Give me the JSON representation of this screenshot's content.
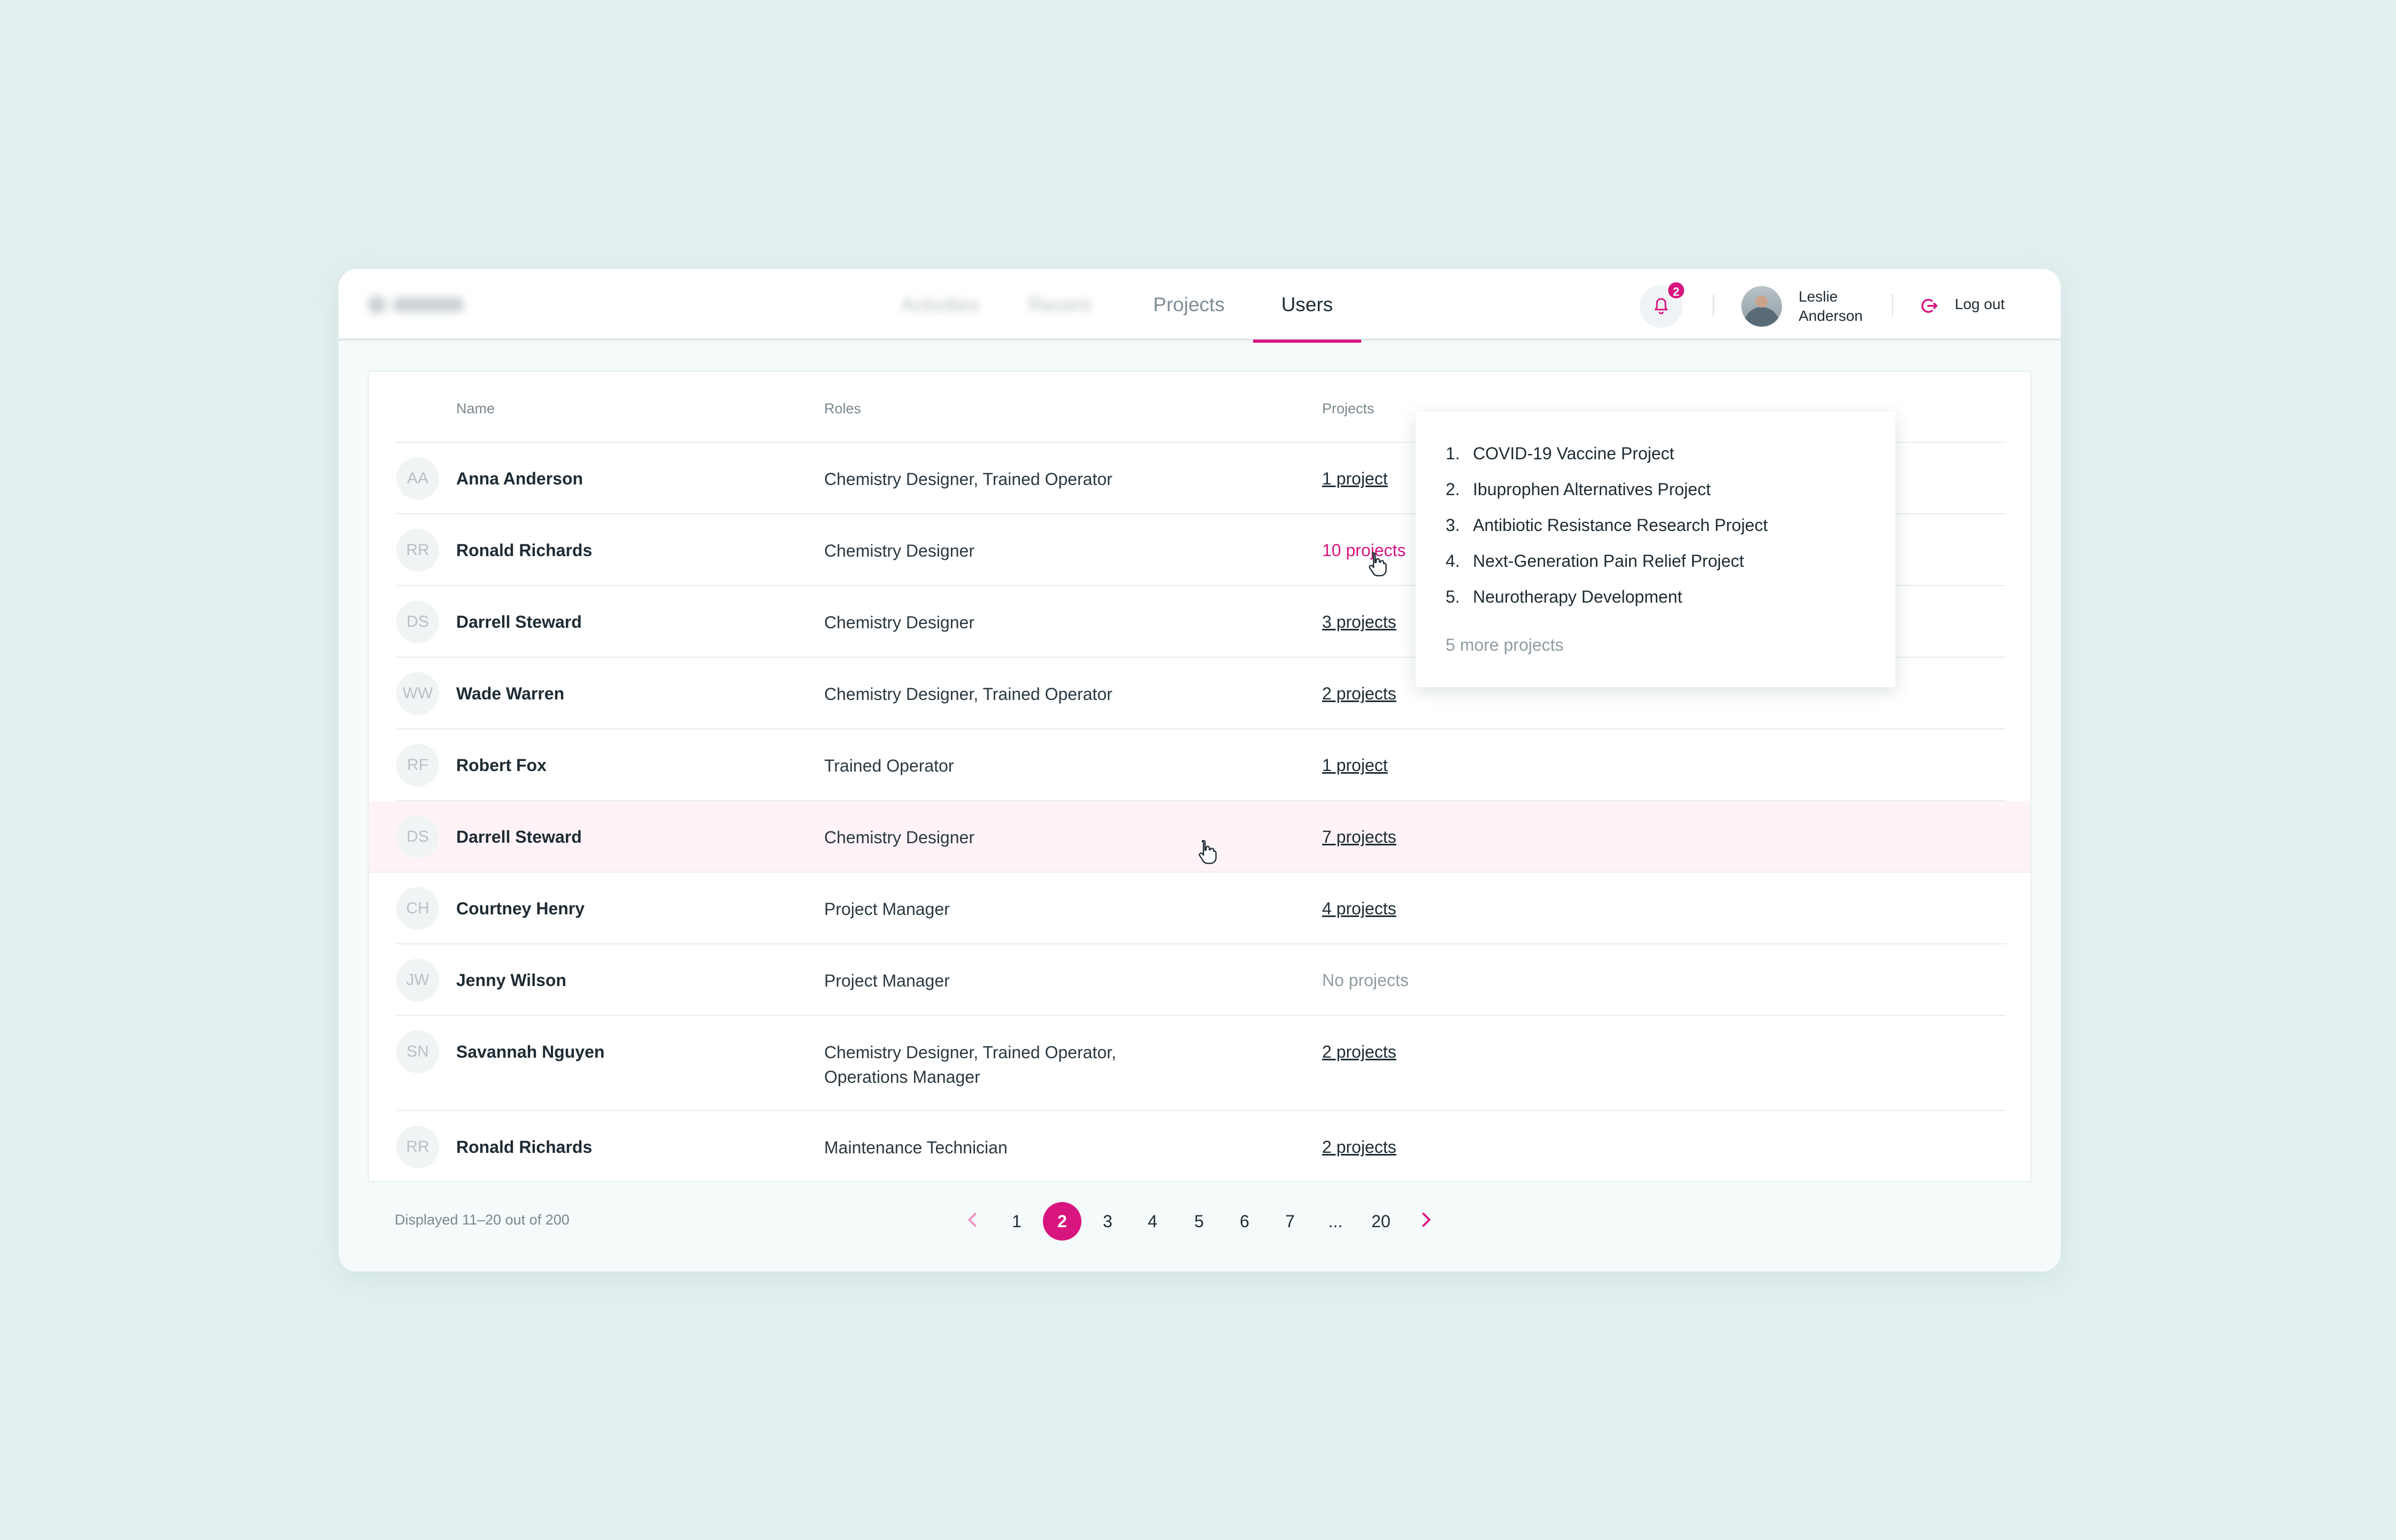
{
  "nav": {
    "tabs": [
      {
        "label": "Activities",
        "blurred": true
      },
      {
        "label": "Recent",
        "blurred": true
      },
      {
        "label": "Projects",
        "blurred": false
      },
      {
        "label": "Users",
        "blurred": false,
        "active": true
      }
    ]
  },
  "header": {
    "notification_count": "2",
    "user": {
      "first_name": "Leslie",
      "last_name": "Anderson"
    },
    "logout_label": "Log out"
  },
  "table": {
    "columns": {
      "name": "Name",
      "roles": "Roles",
      "projects": "Projects"
    },
    "rows": [
      {
        "initials": "AA",
        "name": "Anna Anderson",
        "roles": "Chemistry Designer, Trained Operator",
        "projects": "1 project"
      },
      {
        "initials": "RR",
        "name": "Ronald Richards",
        "roles": "Chemistry Designer",
        "projects": "10 projects",
        "projects_active": true
      },
      {
        "initials": "DS",
        "name": "Darrell Steward",
        "roles": "Chemistry Designer",
        "projects": "3 projects"
      },
      {
        "initials": "WW",
        "name": "Wade Warren",
        "roles": "Chemistry Designer, Trained Operator",
        "projects": "2 projects"
      },
      {
        "initials": "RF",
        "name": "Robert Fox",
        "roles": "Trained Operator",
        "projects": "1 project"
      },
      {
        "initials": "DS",
        "name": "Darrell Steward",
        "roles": "Chemistry Designer",
        "projects": "7 projects",
        "highlighted": true
      },
      {
        "initials": "CH",
        "name": "Courtney Henry",
        "roles": "Project Manager",
        "projects": "4 projects"
      },
      {
        "initials": "JW",
        "name": "Jenny Wilson",
        "roles": "Project Manager",
        "projects": "No projects",
        "no_projects": true
      },
      {
        "initials": "SN",
        "name": "Savannah Nguyen",
        "roles_line1": "Chemistry Designer, Trained Operator,",
        "roles_line2": "Operations Manager",
        "projects": "2 projects"
      },
      {
        "initials": "RR",
        "name": "Ronald Richards",
        "roles": "Maintenance Technician",
        "projects": "2 projects"
      }
    ]
  },
  "popover": {
    "items": [
      {
        "num": "1.",
        "label": "COVID-19 Vaccine Project"
      },
      {
        "num": "2.",
        "label": "Ibuprophen Alternatives Project"
      },
      {
        "num": "3.",
        "label": "Antibiotic Resistance Research Project"
      },
      {
        "num": "4.",
        "label": "Next-Generation Pain Relief Project"
      },
      {
        "num": "5.",
        "label": "Neurotherapy Development"
      }
    ],
    "more": "5 more projects"
  },
  "footer": {
    "displayed": "Displayed 11–20 out of 200",
    "pages": [
      "1",
      "2",
      "3",
      "4",
      "5",
      "6",
      "7",
      "...",
      "20"
    ],
    "current_page": "2"
  },
  "colors": {
    "accent": "#d8157f",
    "background": "#e3f0f0"
  }
}
